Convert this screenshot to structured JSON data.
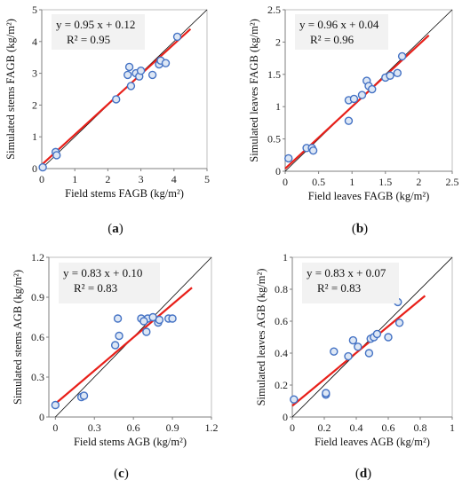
{
  "chart_data": [
    {
      "type": "scatter",
      "panel_label": "(a)",
      "panel_letter": "a",
      "xlabel": "Field stems FAGB (kg/m²)",
      "ylabel": "Simulated stems FAGB (kg/m²)",
      "xlim": [
        0,
        5
      ],
      "ylim": [
        0,
        5
      ],
      "xticks": [
        "0",
        "1",
        "2",
        "3",
        "4",
        "5"
      ],
      "yticks": [
        "0",
        "1",
        "2",
        "3",
        "4",
        "5"
      ],
      "equation": "y = 0.95 x + 0.12",
      "r2": "R² = 0.95",
      "fit": {
        "slope": 0.95,
        "intercept": 0.12,
        "x_range": [
          0,
          4.5
        ]
      },
      "points": [
        {
          "x": 0.03,
          "y": 0.04
        },
        {
          "x": 0.42,
          "y": 0.52
        },
        {
          "x": 0.45,
          "y": 0.42
        },
        {
          "x": 2.25,
          "y": 2.18
        },
        {
          "x": 2.6,
          "y": 2.95
        },
        {
          "x": 2.65,
          "y": 3.2
        },
        {
          "x": 2.7,
          "y": 2.6
        },
        {
          "x": 2.85,
          "y": 3.0
        },
        {
          "x": 2.95,
          "y": 2.9
        },
        {
          "x": 3.0,
          "y": 3.08
        },
        {
          "x": 3.35,
          "y": 2.95
        },
        {
          "x": 3.55,
          "y": 3.28
        },
        {
          "x": 3.6,
          "y": 3.4
        },
        {
          "x": 3.75,
          "y": 3.32
        },
        {
          "x": 4.1,
          "y": 4.15
        }
      ]
    },
    {
      "type": "scatter",
      "panel_label": "(b)",
      "panel_letter": "b",
      "xlabel": "Field leaves FAGB (kg/m²)",
      "ylabel": "Simulated leaves FAGB (kg/m²)",
      "xlim": [
        0,
        2.5
      ],
      "ylim": [
        0,
        2.5
      ],
      "xticks": [
        "0",
        "0.5",
        "1",
        "1.5",
        "2",
        "2.5"
      ],
      "yticks": [
        "0",
        "0.5",
        "1",
        "1.5",
        "2",
        "2.5"
      ],
      "equation": "y = 0.96 x + 0.04",
      "r2": "R² = 0.96",
      "fit": {
        "slope": 0.96,
        "intercept": 0.04,
        "x_range": [
          0,
          2.15
        ]
      },
      "points": [
        {
          "x": 0.05,
          "y": 0.2
        },
        {
          "x": 0.32,
          "y": 0.36
        },
        {
          "x": 0.4,
          "y": 0.36
        },
        {
          "x": 0.42,
          "y": 0.32
        },
        {
          "x": 0.95,
          "y": 0.78
        },
        {
          "x": 0.95,
          "y": 1.1
        },
        {
          "x": 1.03,
          "y": 1.12
        },
        {
          "x": 1.15,
          "y": 1.18
        },
        {
          "x": 1.22,
          "y": 1.4
        },
        {
          "x": 1.25,
          "y": 1.32
        },
        {
          "x": 1.3,
          "y": 1.27
        },
        {
          "x": 1.5,
          "y": 1.45
        },
        {
          "x": 1.57,
          "y": 1.48
        },
        {
          "x": 1.68,
          "y": 1.52
        },
        {
          "x": 1.75,
          "y": 1.78
        }
      ]
    },
    {
      "type": "scatter",
      "panel_label": "(c)",
      "panel_letter": "c",
      "xlabel": "Field stems AGB (kg/m²)",
      "ylabel": "Simulated stems AGB (kg/m²)",
      "xlim": [
        -0.05,
        1.2
      ],
      "ylim": [
        0,
        1.2
      ],
      "xticks": [
        "0",
        "0.3",
        "0.6",
        "0.9",
        "1.2"
      ],
      "xtick_values": [
        0,
        0.3,
        0.6,
        0.9,
        1.2
      ],
      "yticks": [
        "0",
        "0.3",
        "0.6",
        "0.9",
        "1.2"
      ],
      "equation": "y = 0.83 x + 0.10",
      "r2": "R² = 0.83",
      "fit": {
        "slope": 0.83,
        "intercept": 0.1,
        "x_range": [
          0,
          1.05
        ]
      },
      "points": [
        {
          "x": 0.0,
          "y": 0.09
        },
        {
          "x": 0.2,
          "y": 0.15
        },
        {
          "x": 0.22,
          "y": 0.16
        },
        {
          "x": 0.46,
          "y": 0.54
        },
        {
          "x": 0.48,
          "y": 0.74
        },
        {
          "x": 0.49,
          "y": 0.61
        },
        {
          "x": 0.66,
          "y": 0.74
        },
        {
          "x": 0.7,
          "y": 0.64
        },
        {
          "x": 0.71,
          "y": 0.74
        },
        {
          "x": 0.75,
          "y": 0.75
        },
        {
          "x": 0.79,
          "y": 0.71
        },
        {
          "x": 0.8,
          "y": 0.73
        },
        {
          "x": 0.87,
          "y": 0.74
        },
        {
          "x": 0.9,
          "y": 0.74
        },
        {
          "x": 0.68,
          "y": 0.72
        }
      ]
    },
    {
      "type": "scatter",
      "panel_label": "(d)",
      "panel_letter": "d",
      "xlabel": "Field leaves AGB (kg/m²)",
      "ylabel": "Simulated leaves AGB (kg/m²)",
      "xlim": [
        0,
        1
      ],
      "ylim": [
        0,
        1
      ],
      "xticks": [
        "0",
        "0.2",
        "0.4",
        "0.6",
        "0.8",
        "1"
      ],
      "yticks": [
        "0",
        "0.2",
        "0.4",
        "0.6",
        "0.8",
        "1"
      ],
      "equation": "y = 0.83 x + 0.07",
      "r2": "R² = 0.83",
      "fit": {
        "slope": 0.83,
        "intercept": 0.07,
        "x_range": [
          0,
          0.83
        ]
      },
      "points": [
        {
          "x": 0.01,
          "y": 0.11
        },
        {
          "x": 0.21,
          "y": 0.14
        },
        {
          "x": 0.21,
          "y": 0.15
        },
        {
          "x": 0.26,
          "y": 0.41
        },
        {
          "x": 0.35,
          "y": 0.38
        },
        {
          "x": 0.38,
          "y": 0.48
        },
        {
          "x": 0.41,
          "y": 0.44
        },
        {
          "x": 0.48,
          "y": 0.4
        },
        {
          "x": 0.49,
          "y": 0.49
        },
        {
          "x": 0.51,
          "y": 0.5
        },
        {
          "x": 0.53,
          "y": 0.52
        },
        {
          "x": 0.6,
          "y": 0.5
        },
        {
          "x": 0.66,
          "y": 0.72
        },
        {
          "x": 0.67,
          "y": 0.59
        }
      ]
    }
  ],
  "colors": {
    "point_edge": "#4472c4",
    "point_fill": "#dde7f5",
    "fit_line": "#e8201a",
    "identity_line": "#000000",
    "axis": "#7f7f7f",
    "annotation_bg": "#f2f2f2"
  }
}
